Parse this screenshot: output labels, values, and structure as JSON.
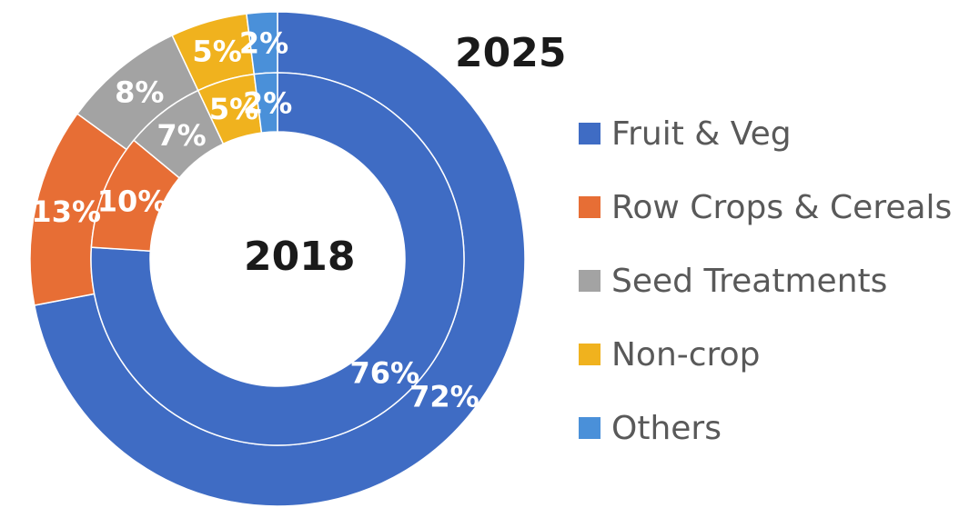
{
  "chart_data": {
    "type": "donut",
    "rings": [
      {
        "name": "2018",
        "values": [
          76,
          10,
          7,
          5,
          2
        ]
      },
      {
        "name": "2025",
        "values": [
          72,
          13,
          8,
          5,
          2
        ]
      }
    ],
    "categories": [
      "Fruit & Veg",
      "Row Crops & Cereals",
      "Seed Treatments",
      "Non-crop",
      "Others"
    ],
    "colors": [
      "#3f6cc4",
      "#e76e35",
      "#a3a3a3",
      "#f0b21e",
      "#4a90d9"
    ],
    "value_suffix": "%",
    "legend": "right"
  }
}
